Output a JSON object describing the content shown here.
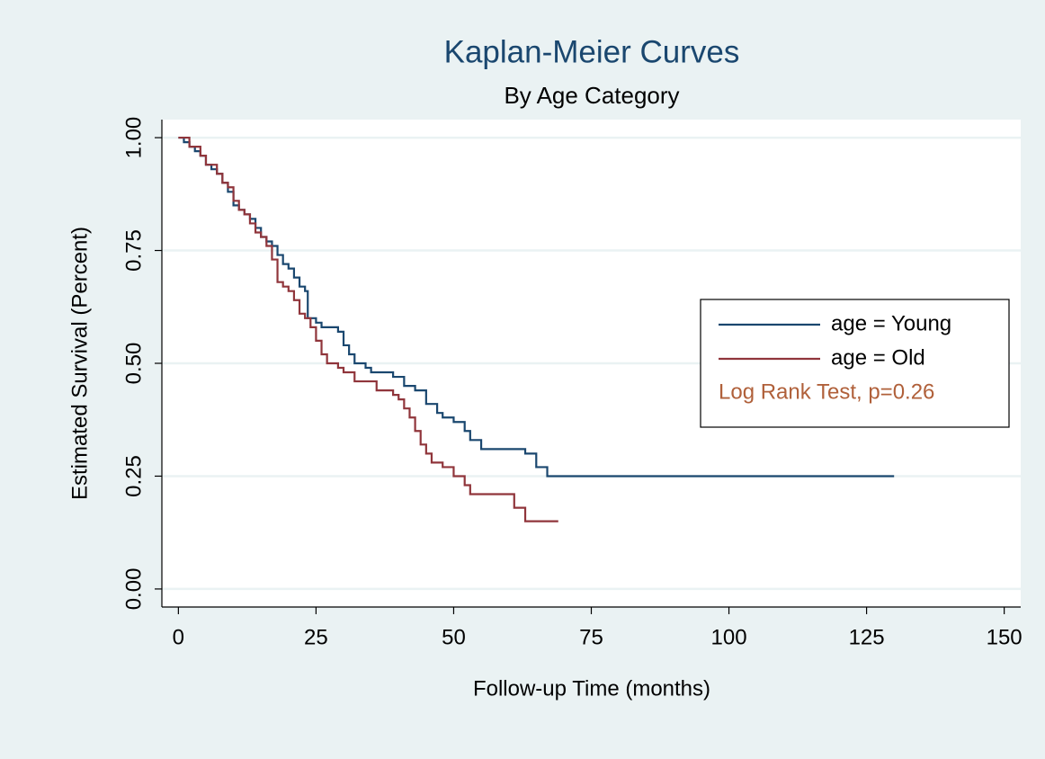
{
  "chart_data": {
    "type": "step",
    "title": "Kaplan-Meier Curves",
    "subtitle": "By Age Category",
    "x_label": "Follow-up Time (months)",
    "y_label": "Estimated Survival (Percent)",
    "xlim": [
      -3,
      153
    ],
    "ylim": [
      -0.04,
      1.04
    ],
    "xticks": [
      0,
      25,
      50,
      75,
      100,
      125,
      150
    ],
    "yticks": [
      {
        "value": 0,
        "label": "0.00"
      },
      {
        "value": 0.25,
        "label": "0.25"
      },
      {
        "value": 0.5,
        "label": "0.50"
      },
      {
        "value": 0.75,
        "label": "0.75"
      },
      {
        "value": 1,
        "label": "1.00"
      }
    ],
    "grid": true,
    "legend": "right",
    "annotation": {
      "text": "Log Rank Test, p=0.26",
      "color": "#b0603a"
    },
    "series": [
      {
        "name": "age = Young",
        "color": "#1a476f",
        "x": [
          0,
          1,
          2,
          3,
          4,
          5,
          6,
          7,
          8,
          9,
          10,
          11,
          12,
          13,
          14,
          15,
          16,
          17,
          18,
          19,
          20,
          21,
          22,
          23,
          23.5,
          25,
          26,
          29,
          30,
          31,
          32,
          34,
          35,
          39,
          41,
          43,
          45,
          47,
          48,
          50,
          52,
          53,
          55,
          63,
          65,
          67,
          130
        ],
        "values": [
          1.0,
          0.99,
          0.98,
          0.97,
          0.96,
          0.94,
          0.93,
          0.92,
          0.9,
          0.88,
          0.85,
          0.84,
          0.83,
          0.82,
          0.8,
          0.78,
          0.77,
          0.76,
          0.74,
          0.72,
          0.71,
          0.69,
          0.67,
          0.66,
          0.6,
          0.59,
          0.58,
          0.57,
          0.54,
          0.52,
          0.5,
          0.49,
          0.48,
          0.47,
          0.45,
          0.44,
          0.41,
          0.39,
          0.38,
          0.37,
          0.35,
          0.33,
          0.31,
          0.3,
          0.27,
          0.25,
          0.25
        ]
      },
      {
        "name": "age = Old",
        "color": "#90353b",
        "x": [
          0,
          2,
          4,
          5,
          7,
          8,
          9,
          10,
          11,
          12,
          13,
          14,
          15,
          16,
          17,
          18,
          19,
          20,
          21,
          22,
          23,
          24,
          25,
          26,
          27,
          29,
          30,
          32,
          36,
          39,
          40,
          41,
          42,
          43,
          44,
          45,
          46,
          48,
          50,
          52,
          53,
          61,
          63,
          69
        ],
        "values": [
          1.0,
          0.98,
          0.96,
          0.94,
          0.92,
          0.9,
          0.89,
          0.86,
          0.84,
          0.83,
          0.81,
          0.79,
          0.78,
          0.76,
          0.73,
          0.68,
          0.67,
          0.66,
          0.64,
          0.61,
          0.6,
          0.58,
          0.55,
          0.52,
          0.5,
          0.49,
          0.48,
          0.46,
          0.44,
          0.43,
          0.42,
          0.4,
          0.38,
          0.35,
          0.32,
          0.3,
          0.28,
          0.27,
          0.25,
          0.23,
          0.21,
          0.18,
          0.15,
          0.15
        ]
      }
    ]
  }
}
